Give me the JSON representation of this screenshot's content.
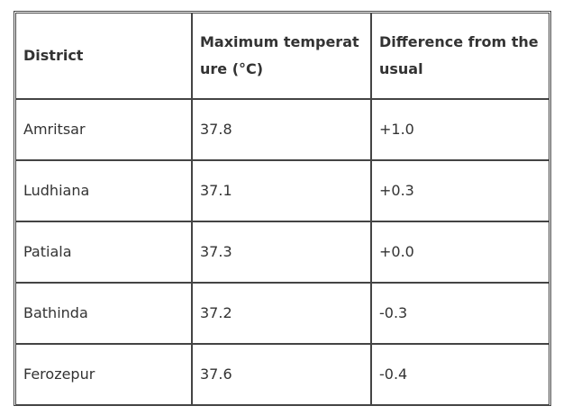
{
  "table": {
    "headers": [
      "District",
      "Maximum temperature (°C)",
      "Difference from the usual"
    ],
    "rows": [
      [
        "Amritsar",
        "37.8",
        "+1.0"
      ],
      [
        "Ludhiana",
        "37.1",
        "+0.3"
      ],
      [
        "Patiala",
        "37.3",
        "+0.0"
      ],
      [
        "Bathinda",
        "37.2",
        "-0.3"
      ],
      [
        "Ferozepur",
        "37.6",
        "-0.4"
      ]
    ]
  }
}
